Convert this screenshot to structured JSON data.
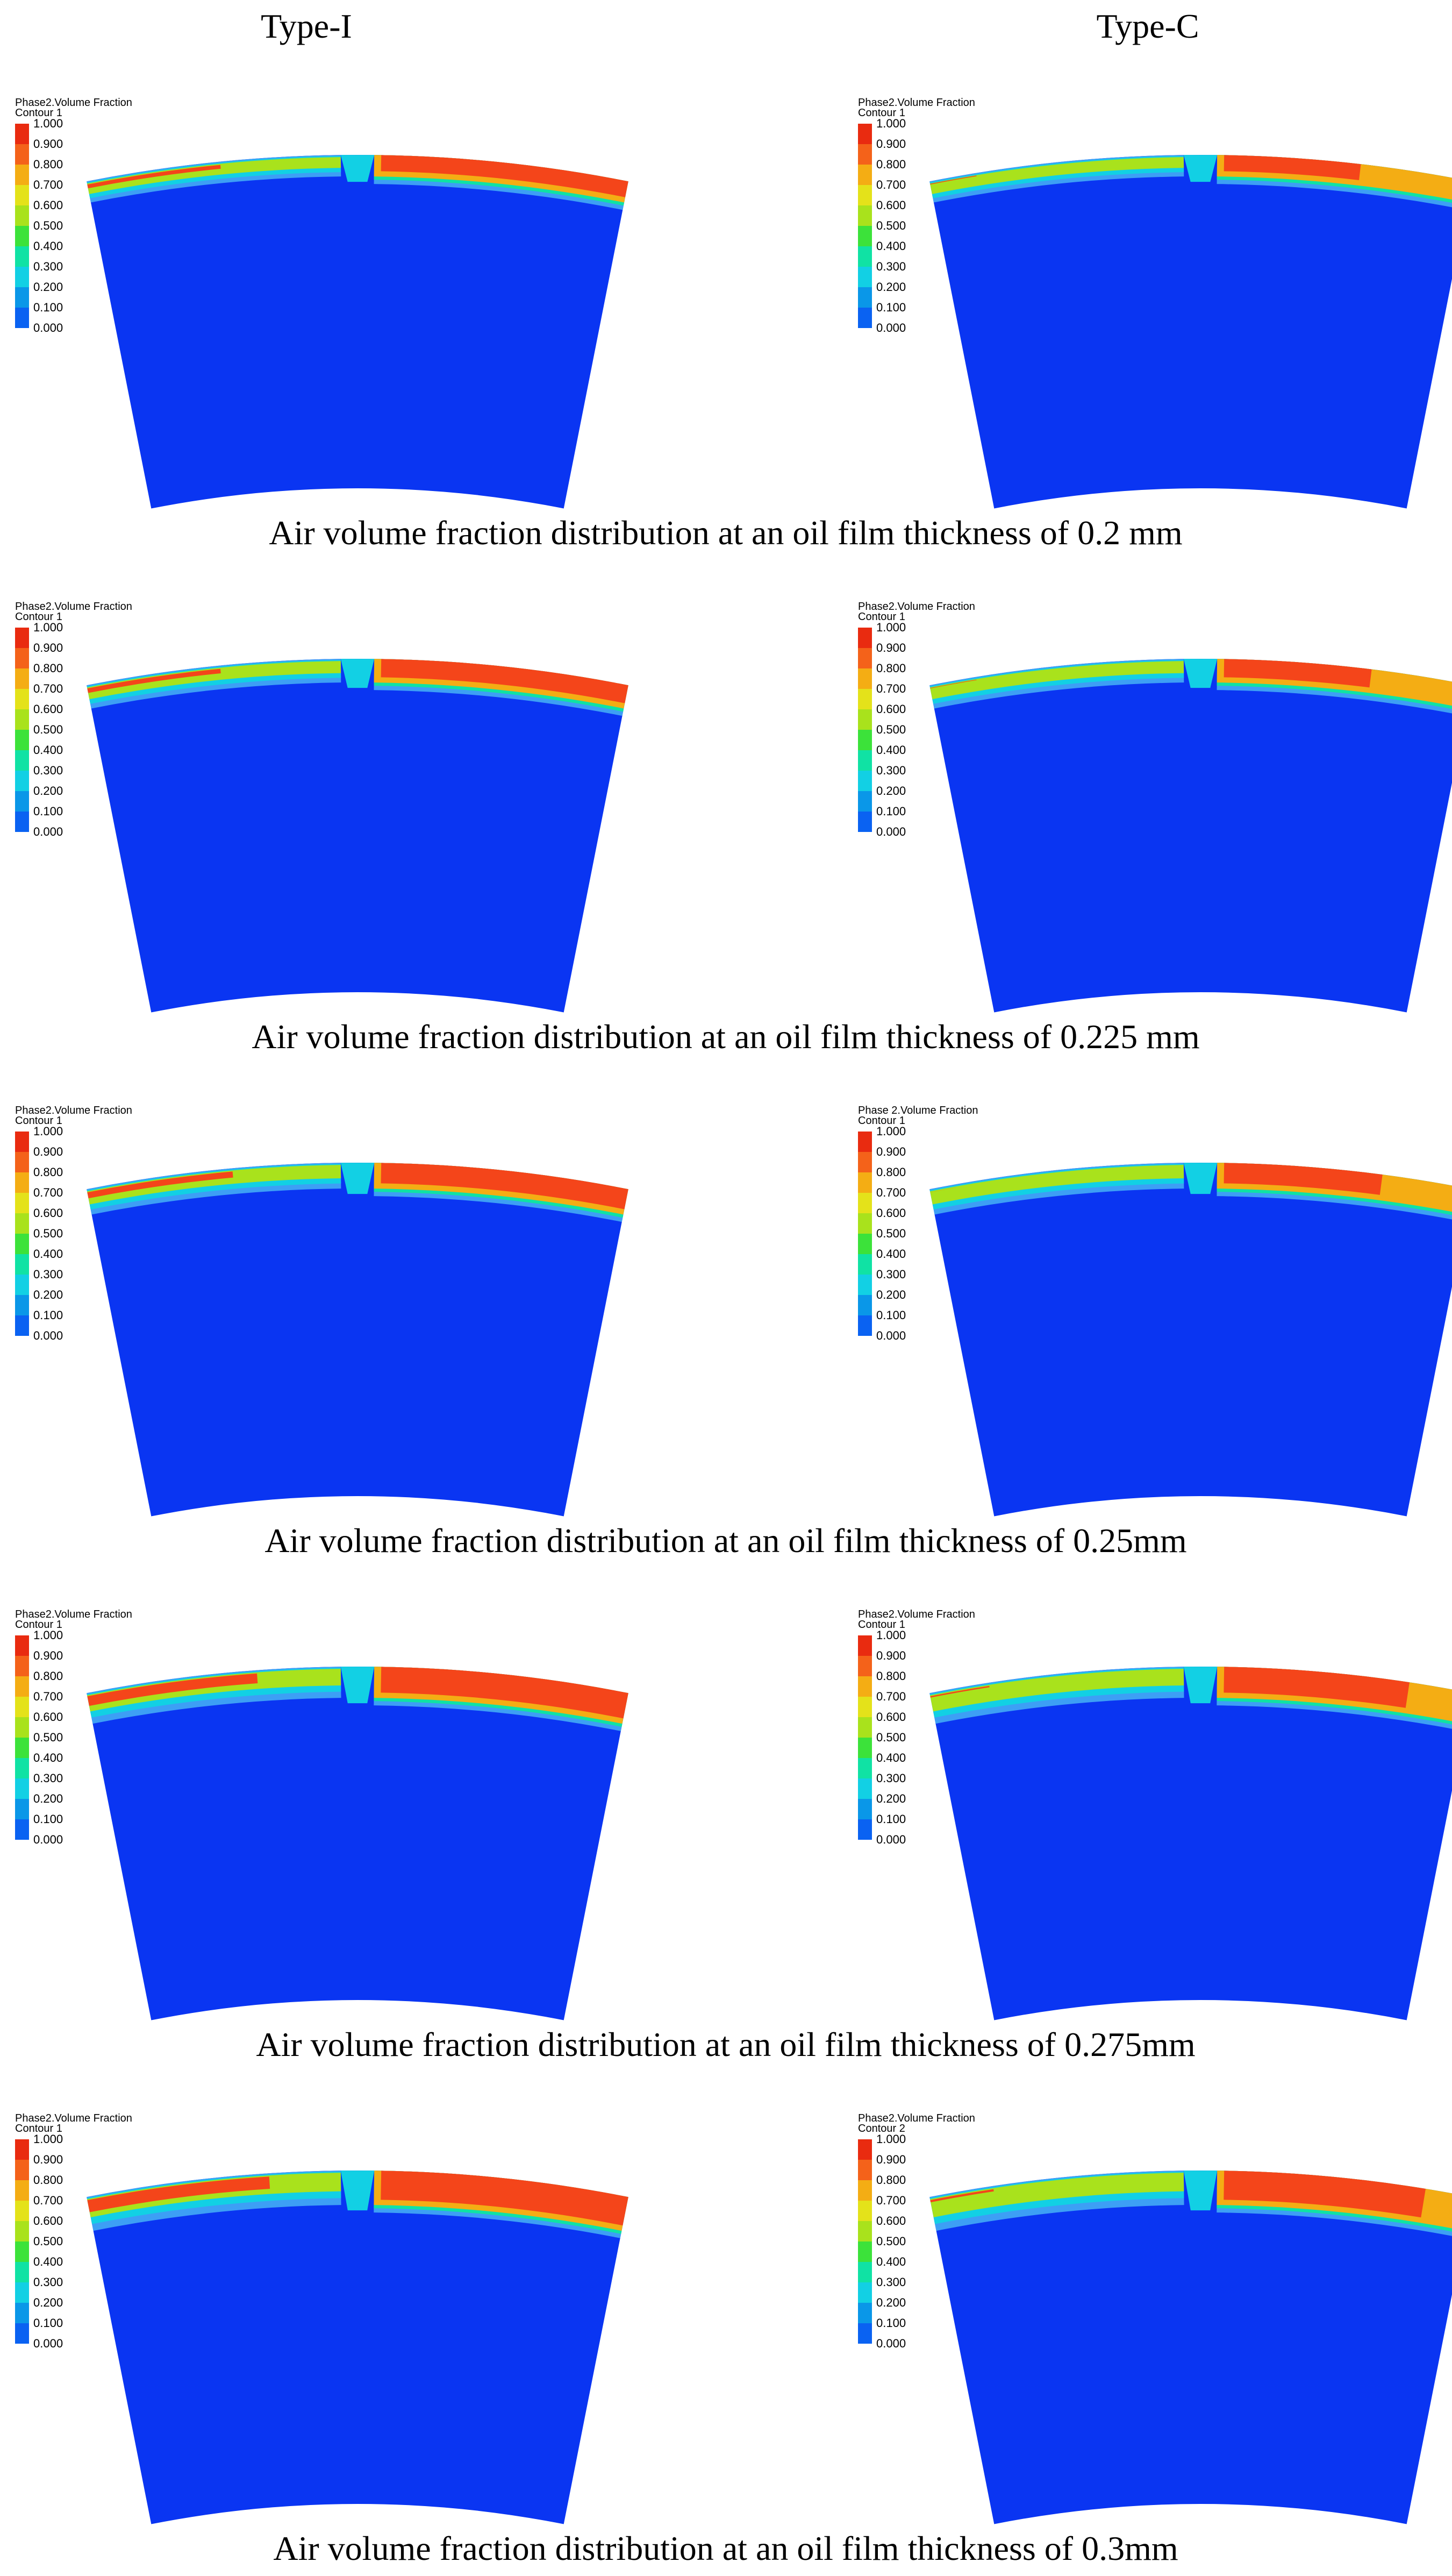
{
  "column_headers": [
    "Type-I",
    "Type-C"
  ],
  "colors": {
    "bands": [
      "#0a26f5",
      "#0a62f2",
      "#0a97e8",
      "#12d0e4",
      "#10e2a4",
      "#3ce23a",
      "#a9e21c",
      "#e4e21a",
      "#f4ad14",
      "#f4621a",
      "#e92b10"
    ],
    "domain": "#0a35f2",
    "oil_band": "#3d9ff5",
    "air": "#f4451a"
  },
  "rows": [
    {
      "caption": "Air volume fraction distribution at an oil film thickness of 0.2 mm",
      "panels": [
        {
          "legend_title": "Phase2.Volume Fraction",
          "legend_subtitle": "Contour 1",
          "legend_ticks": [
            "1.000",
            "0.900",
            "0.800",
            "0.700",
            "0.600",
            "0.500",
            "0.400",
            "0.300",
            "0.200",
            "0.100",
            "0.000"
          ]
        },
        {
          "legend_title": "Phase2.Volume Fraction",
          "legend_subtitle": "Contour 1",
          "legend_ticks": [
            "1.000",
            "0.900",
            "0.800",
            "0.700",
            "0.600",
            "0.500",
            "0.400",
            "0.300",
            "0.200",
            "0.100",
            "0.000"
          ]
        }
      ]
    },
    {
      "caption": "Air volume fraction distribution at an oil film thickness of 0.225 mm",
      "panels": [
        {
          "legend_title": "Phase2.Volume Fraction",
          "legend_subtitle": "Contour 1",
          "legend_ticks": [
            "1.000",
            "0.900",
            "0.800",
            "0.700",
            "0.600",
            "0.500",
            "0.400",
            "0.300",
            "0.200",
            "0.100",
            "0.000"
          ]
        },
        {
          "legend_title": "Phase2.Volume Fraction",
          "legend_subtitle": "Contour 1",
          "legend_ticks": [
            "1.000",
            "0.900",
            "0.800",
            "0.700",
            "0.600",
            "0.500",
            "0.400",
            "0.300",
            "0.200",
            "0.100",
            "0.000"
          ]
        }
      ]
    },
    {
      "caption": "Air volume fraction distribution at an oil film thickness of 0.25mm",
      "panels": [
        {
          "legend_title": "Phase2.Volume Fraction",
          "legend_subtitle": "Contour 1",
          "legend_ticks": [
            "1.000",
            "0.900",
            "0.800",
            "0.700",
            "0.600",
            "0.500",
            "0.400",
            "0.300",
            "0.200",
            "0.100",
            "0.000"
          ]
        },
        {
          "legend_title": "Phase 2.Volume Fraction",
          "legend_subtitle": "Contour 1",
          "legend_ticks": [
            "1.000",
            "0.900",
            "0.800",
            "0.700",
            "0.600",
            "0.500",
            "0.400",
            "0.300",
            "0.200",
            "0.100",
            "0.000"
          ]
        }
      ]
    },
    {
      "caption": "Air volume fraction distribution at an oil film thickness of 0.275mm",
      "panels": [
        {
          "legend_title": "Phase2.Volume Fraction",
          "legend_subtitle": "Contour 1",
          "legend_ticks": [
            "1.000",
            "0.900",
            "0.800",
            "0.700",
            "0.600",
            "0.500",
            "0.400",
            "0.300",
            "0.200",
            "0.100",
            "0.000"
          ]
        },
        {
          "legend_title": "Phase2.Volume Fraction",
          "legend_subtitle": "Contour 1",
          "legend_ticks": [
            "1.000",
            "0.900",
            "0.800",
            "0.700",
            "0.600",
            "0.500",
            "0.400",
            "0.300",
            "0.200",
            "0.100",
            "0.000"
          ]
        }
      ]
    },
    {
      "caption": "Air volume fraction distribution at an oil film thickness of 0.3mm",
      "panels": [
        {
          "legend_title": "Phase2.Volume Fraction",
          "legend_subtitle": "Contour 1",
          "legend_ticks": [
            "1.000",
            "0.900",
            "0.800",
            "0.700",
            "0.600",
            "0.500",
            "0.400",
            "0.300",
            "0.200",
            "0.100",
            "0.000"
          ]
        },
        {
          "legend_title": "Phase2.Volume Fraction",
          "legend_subtitle": "Contour 2",
          "legend_ticks": [
            "1.000",
            "0.900",
            "0.800",
            "0.700",
            "0.600",
            "0.500",
            "0.400",
            "0.300",
            "0.200",
            "0.100",
            "0.000"
          ]
        }
      ]
    }
  ]
}
